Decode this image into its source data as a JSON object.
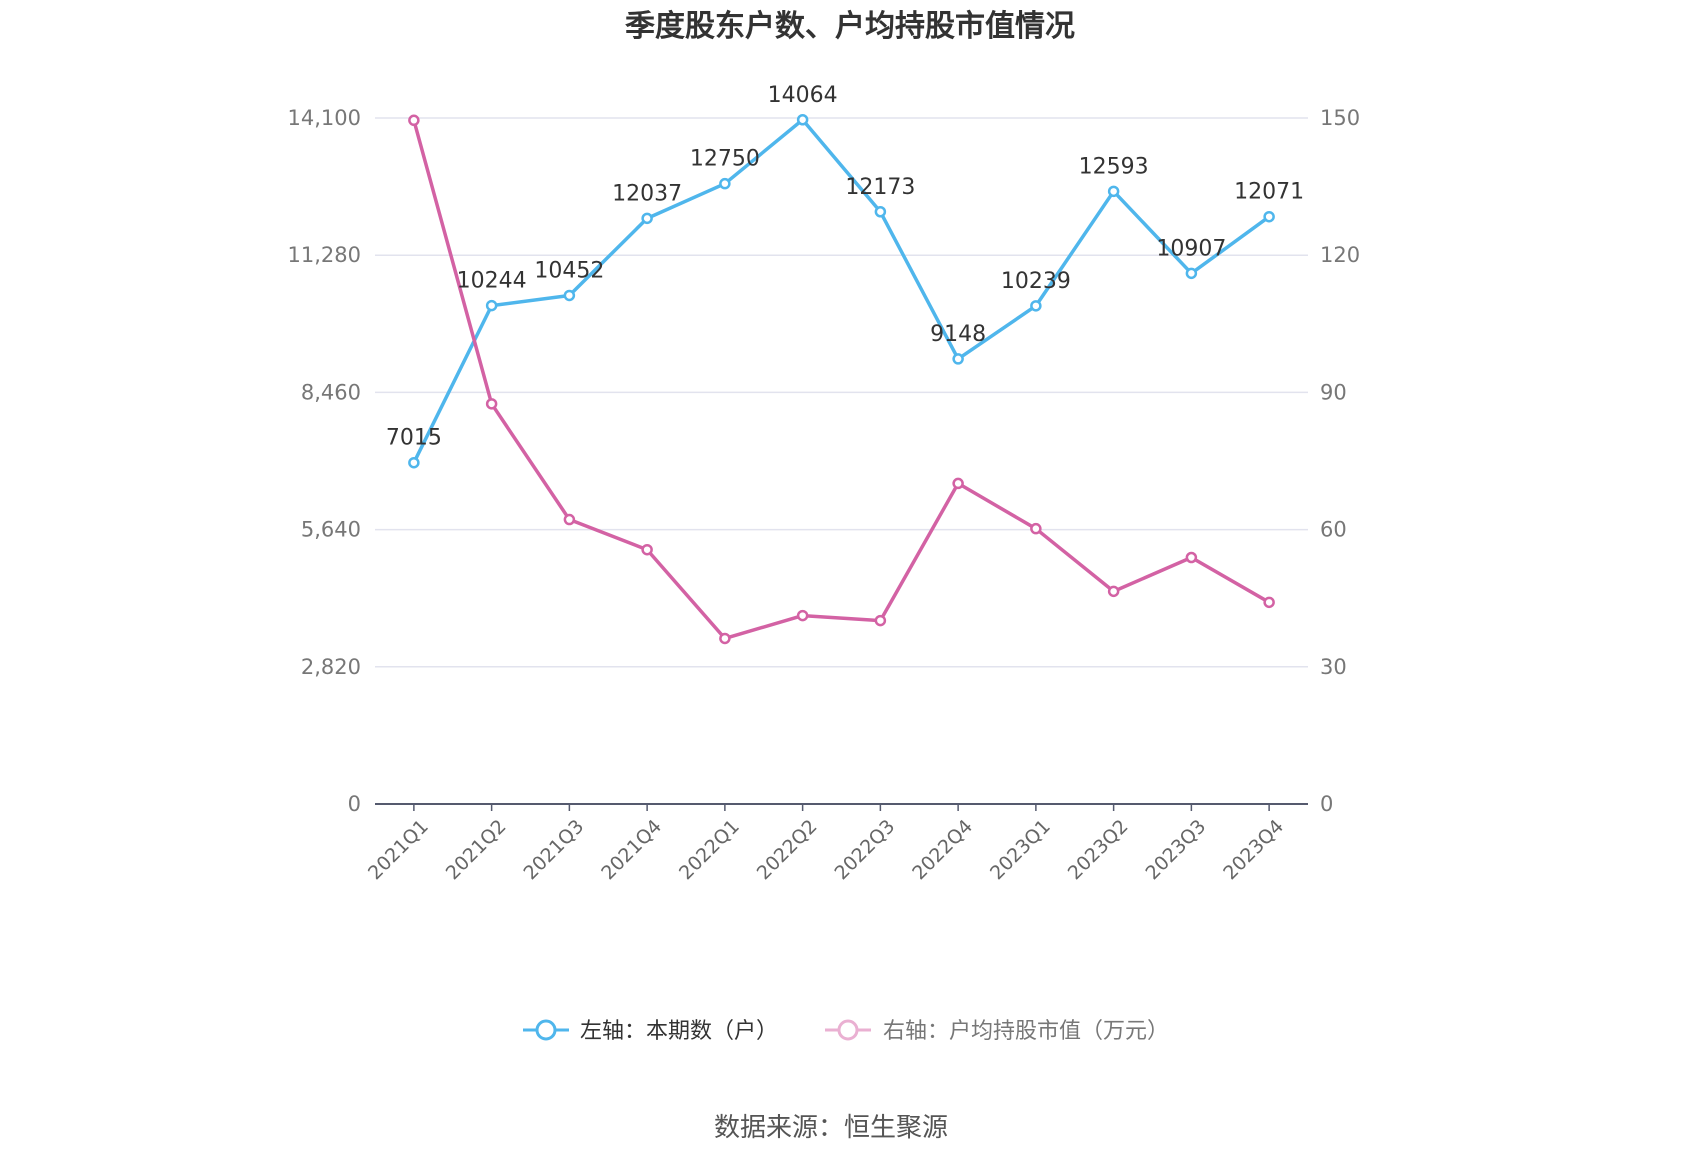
{
  "chart_data": {
    "type": "line",
    "title": "季度股东户数、户均持股市值情况",
    "categories": [
      "2021Q1",
      "2021Q2",
      "2021Q3",
      "2021Q4",
      "2022Q1",
      "2022Q2",
      "2022Q3",
      "2022Q4",
      "2023Q1",
      "2023Q2",
      "2023Q3",
      "2023Q4"
    ],
    "series": [
      {
        "name": "左轴：本期数（户）",
        "axis": "left",
        "color": "#4fb6ec",
        "values": [
          7015,
          10244,
          10452,
          12037,
          12750,
          14064,
          12173,
          9148,
          10239,
          12593,
          10907,
          12071
        ],
        "labels": [
          "7015",
          "10244",
          "10452",
          "12037",
          "12750",
          "14064",
          "12173",
          "9148",
          "10239",
          "12593",
          "10907",
          "12071"
        ]
      },
      {
        "name": "右轴：户均持股市值（万元）",
        "axis": "right",
        "color": "#d362a4",
        "values": [
          149.5,
          87.5,
          62.2,
          55.6,
          36.2,
          41.2,
          40.1,
          70.1,
          60.2,
          46.5,
          53.9,
          44.1
        ]
      }
    ],
    "y_left": {
      "min": 0,
      "max": 14100,
      "ticks": [
        "0",
        "2,820",
        "5,640",
        "8,460",
        "11,280",
        "14,100"
      ]
    },
    "y_right": {
      "min": 0,
      "max": 150,
      "ticks": [
        "0",
        "30",
        "60",
        "90",
        "120",
        "150"
      ]
    },
    "grid": true,
    "legend_position": "bottom"
  },
  "source": "数据来源：恒生聚源"
}
